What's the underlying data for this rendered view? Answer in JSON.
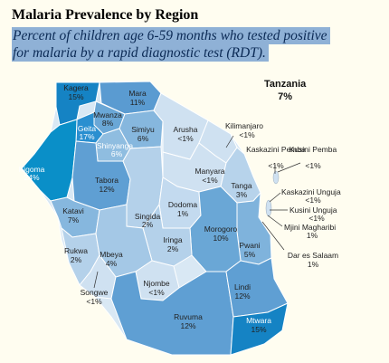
{
  "title": "Malaria Prevalence by Region",
  "subtitle_line1": "Percent of children age 6-59 months who tested positive",
  "subtitle_line2": "for malaria by a rapid diagnostic test (RDT).",
  "country": {
    "name": "Tanzania",
    "value": "7%"
  },
  "regions": [
    {
      "name": "Kagera",
      "value": "15%"
    },
    {
      "name": "Mara",
      "value": "11%"
    },
    {
      "name": "Mwanza",
      "value": "8%"
    },
    {
      "name": "Geita",
      "value": "17%"
    },
    {
      "name": "Simiyu",
      "value": "6%"
    },
    {
      "name": "Arusha",
      "value": "<1%"
    },
    {
      "name": "Kilimanjaro",
      "value": "<1%"
    },
    {
      "name": "Shinyanga",
      "value": "6%"
    },
    {
      "name": "Kigoma",
      "value": "24%"
    },
    {
      "name": "Tabora",
      "value": "12%"
    },
    {
      "name": "Manyara",
      "value": "<1%"
    },
    {
      "name": "Tanga",
      "value": "3%"
    },
    {
      "name": "Kaskazini Pemba",
      "value": "<1%"
    },
    {
      "name": "Kusini Pemba",
      "value": "<1%"
    },
    {
      "name": "Kaskazini Unguja",
      "value": "<1%"
    },
    {
      "name": "Kusini Unguja",
      "value": "<1%"
    },
    {
      "name": "Mjini Magharibi",
      "value": "1%"
    },
    {
      "name": "Katavi",
      "value": "7%"
    },
    {
      "name": "Singida",
      "value": "2%"
    },
    {
      "name": "Dodoma",
      "value": "1%"
    },
    {
      "name": "Morogoro",
      "value": "10%"
    },
    {
      "name": "Dar es Salaam",
      "value": "1%"
    },
    {
      "name": "Pwani",
      "value": "5%"
    },
    {
      "name": "Iringa",
      "value": "2%"
    },
    {
      "name": "Rukwa",
      "value": "2%"
    },
    {
      "name": "Mbeya",
      "value": "4%"
    },
    {
      "name": "Njombe",
      "value": "<1%"
    },
    {
      "name": "Songwe",
      "value": "<1%"
    },
    {
      "name": "Lindi",
      "value": "12%"
    },
    {
      "name": "Ruvuma",
      "value": "12%"
    },
    {
      "name": "Mtwara",
      "value": "15%"
    }
  ],
  "colors": {
    "background": "#fffdf0",
    "subtitle_highlight": "#8fb1d6",
    "lowest": "#d9e8f4",
    "low": "#b4d1ea",
    "mid": "#7fb3dc",
    "high": "#4f93c8",
    "highest": "#0a8fc8"
  }
}
